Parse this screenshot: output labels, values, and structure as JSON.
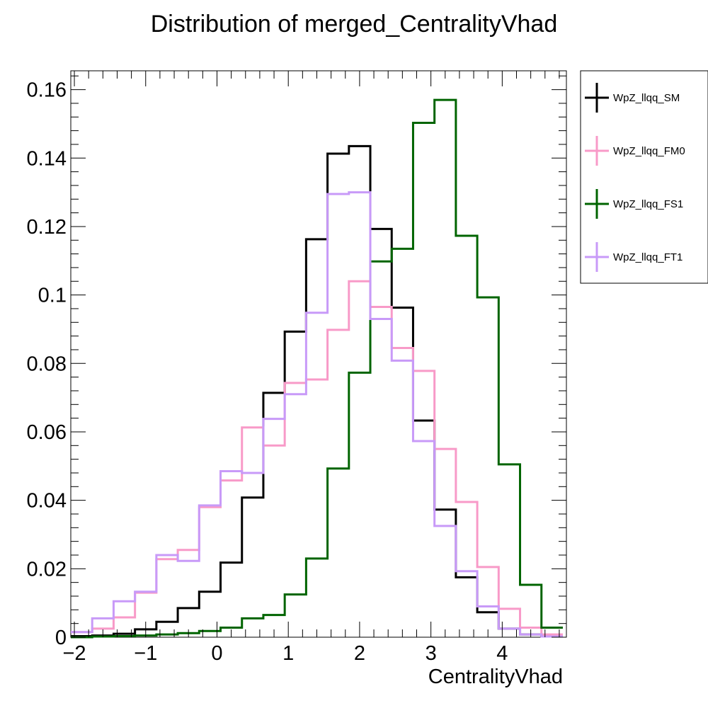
{
  "chart_data": {
    "type": "step-histogram",
    "title": "Distribution of merged_CentralityVhad",
    "xlabel": "CentralityVhad",
    "ylabel": "",
    "xlim": [
      -2.05,
      4.9
    ],
    "ylim": [
      0,
      0.1655
    ],
    "x_ticks": [
      -2,
      -1,
      0,
      1,
      2,
      3,
      4
    ],
    "x_tick_labels": [
      "−2",
      "−1",
      "0",
      "1",
      "2",
      "3",
      "4"
    ],
    "y_ticks": [
      0,
      0.02,
      0.04,
      0.06,
      0.08,
      0.1,
      0.12,
      0.14,
      0.16
    ],
    "y_tick_labels": [
      "0",
      "0.02",
      "0.04",
      "0.06",
      "0.08",
      "0.1",
      "0.12",
      "0.14",
      "0.16"
    ],
    "bin_edges": [
      -2.05,
      -1.75,
      -1.45,
      -1.15,
      -0.85,
      -0.55,
      -0.25,
      0.05,
      0.35,
      0.65,
      0.95,
      1.25,
      1.55,
      1.85,
      2.15,
      2.45,
      2.75,
      3.05,
      3.35,
      3.65,
      3.95,
      4.25,
      4.55,
      4.85
    ],
    "legend_position": "right, outside plot",
    "series": [
      {
        "name": "WpZ_llqq_SM",
        "color": "#000000",
        "values": [
          0.0003,
          0.0005,
          0.001,
          0.0023,
          0.0045,
          0.0085,
          0.0133,
          0.0218,
          0.0408,
          0.0714,
          0.0893,
          0.1163,
          0.1413,
          0.1435,
          0.1193,
          0.0963,
          0.0633,
          0.0373,
          0.0175,
          0.0073,
          0.0025,
          0.0008,
          0.0002
        ]
      },
      {
        "name": "WpZ_llqq_FM0",
        "color": "#f89ac8",
        "values": [
          0.0015,
          0.0025,
          0.0058,
          0.013,
          0.0228,
          0.0255,
          0.038,
          0.0458,
          0.0613,
          0.056,
          0.0743,
          0.0753,
          0.0898,
          0.104,
          0.0965,
          0.0845,
          0.0778,
          0.055,
          0.0395,
          0.0205,
          0.0083,
          0.0028,
          0.0008
        ]
      },
      {
        "name": "WpZ_llqq_FS1",
        "color": "#006400",
        "values": [
          0.0,
          0.0002,
          0.0003,
          0.0005,
          0.0008,
          0.0012,
          0.0018,
          0.0028,
          0.0055,
          0.0065,
          0.0125,
          0.023,
          0.0493,
          0.0773,
          0.1098,
          0.1135,
          0.1503,
          0.157,
          0.1173,
          0.0993,
          0.0505,
          0.0153,
          0.0028
        ]
      },
      {
        "name": "WpZ_llqq_FT1",
        "color": "#c89af8",
        "values": [
          0.0015,
          0.0055,
          0.0105,
          0.0133,
          0.024,
          0.0223,
          0.0385,
          0.0485,
          0.048,
          0.0638,
          0.071,
          0.0948,
          0.1295,
          0.13,
          0.093,
          0.0808,
          0.0573,
          0.0325,
          0.0193,
          0.009,
          0.0025,
          0.0008,
          0.0002
        ]
      }
    ]
  }
}
